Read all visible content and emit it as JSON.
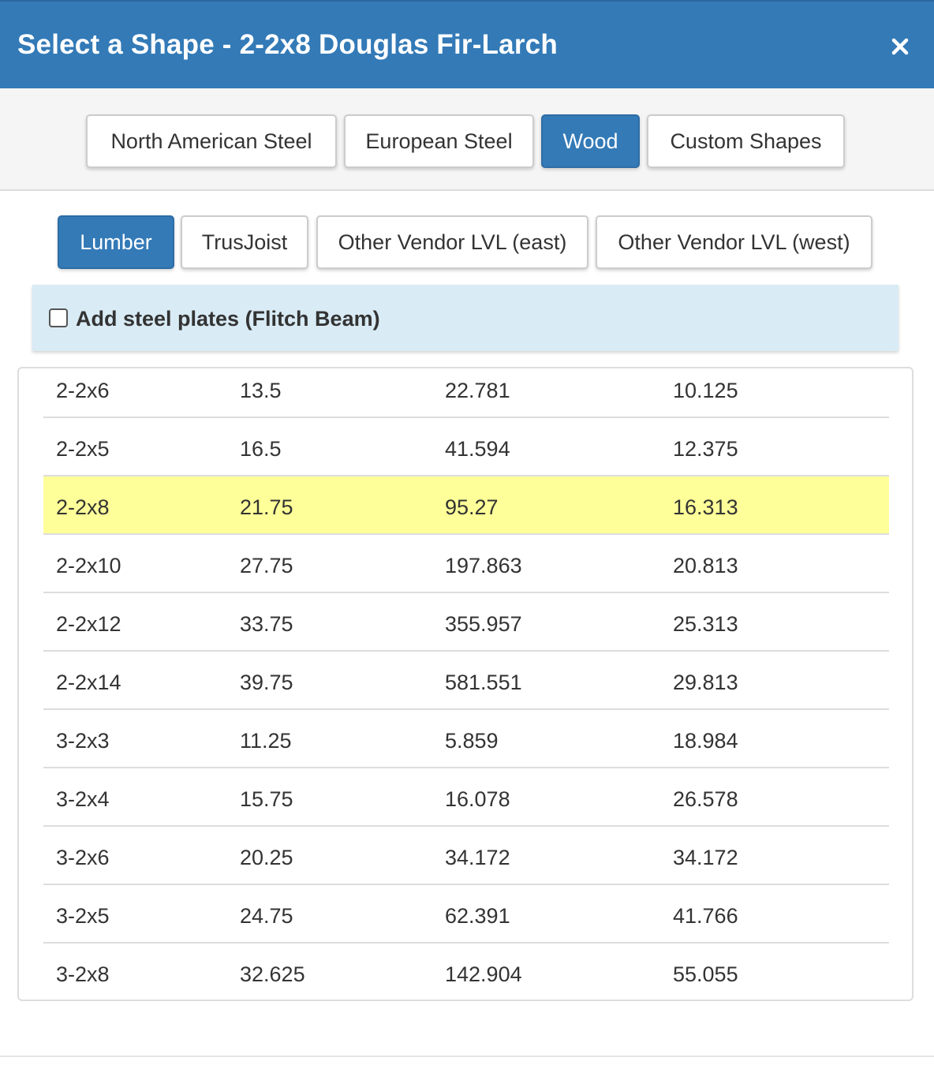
{
  "header": {
    "title": "Select a Shape - 2-2x8 Douglas Fir-Larch",
    "close_icon": "close-icon"
  },
  "category_tabs": [
    {
      "label": "North American Steel",
      "active": false
    },
    {
      "label": "European Steel",
      "active": false
    },
    {
      "label": "Wood",
      "active": true
    },
    {
      "label": "Custom Shapes",
      "active": false
    }
  ],
  "sub_tabs": [
    {
      "label": "Lumber",
      "active": true
    },
    {
      "label": "TrusJoist",
      "active": false
    },
    {
      "label": "Other Vendor LVL (east)",
      "active": false
    },
    {
      "label": "Other Vendor LVL (west)",
      "active": false
    }
  ],
  "flitch": {
    "label": "Add steel plates (Flitch Beam)",
    "checked": false
  },
  "table": {
    "rows": [
      {
        "cells": [
          "2-2x6",
          "13.5",
          "22.781",
          "10.125"
        ],
        "selected": false
      },
      {
        "cells": [
          "2-2x5",
          "16.5",
          "41.594",
          "12.375"
        ],
        "selected": false
      },
      {
        "cells": [
          "2-2x8",
          "21.75",
          "95.27",
          "16.313"
        ],
        "selected": true
      },
      {
        "cells": [
          "2-2x10",
          "27.75",
          "197.863",
          "20.813"
        ],
        "selected": false
      },
      {
        "cells": [
          "2-2x12",
          "33.75",
          "355.957",
          "25.313"
        ],
        "selected": false
      },
      {
        "cells": [
          "2-2x14",
          "39.75",
          "581.551",
          "29.813"
        ],
        "selected": false
      },
      {
        "cells": [
          "3-2x3",
          "11.25",
          "5.859",
          "18.984"
        ],
        "selected": false
      },
      {
        "cells": [
          "3-2x4",
          "15.75",
          "16.078",
          "26.578"
        ],
        "selected": false
      },
      {
        "cells": [
          "3-2x6",
          "20.25",
          "34.172",
          "34.172"
        ],
        "selected": false
      },
      {
        "cells": [
          "3-2x5",
          "24.75",
          "62.391",
          "41.766"
        ],
        "selected": false
      },
      {
        "cells": [
          "3-2x8",
          "32.625",
          "142.904",
          "55.055"
        ],
        "selected": false
      }
    ]
  },
  "colors": {
    "primary": "#337ab7",
    "selected_row": "#ffff99",
    "flitch_panel": "#d9ebf5"
  }
}
